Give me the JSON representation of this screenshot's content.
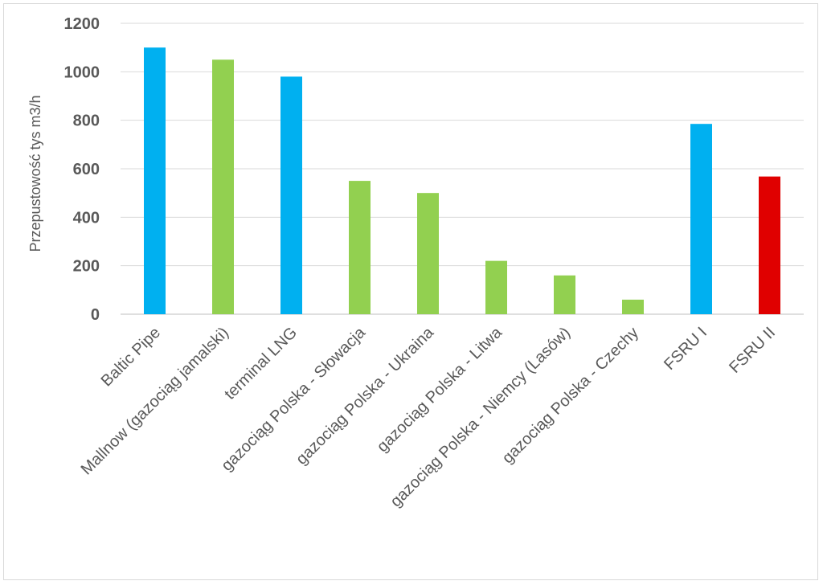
{
  "chart_data": {
    "type": "bar",
    "title": "",
    "xlabel": "",
    "ylabel": "Przepustowość tys m3/h",
    "ylim": [
      0,
      1200
    ],
    "yticks": [
      0,
      200,
      400,
      600,
      800,
      1000,
      1200
    ],
    "grid": true,
    "legend": "none",
    "categories": [
      "Baltic Pipe",
      "Mallnow (gazociąg jamalski)",
      "terminal LNG",
      "gazociąg Polska - Słowacja",
      "gazociąg Polska - Ukraina",
      "gazociąg Polska - Litwa",
      "gazociąg Polska - Niemcy (Lasów)",
      "gazociąg Polska - Czechy",
      "FSRU I",
      "FSRU II"
    ],
    "values": [
      1100,
      1050,
      980,
      550,
      500,
      220,
      160,
      60,
      785,
      568
    ],
    "colors": [
      "#00b0f0",
      "#92d050",
      "#00b0f0",
      "#92d050",
      "#92d050",
      "#92d050",
      "#92d050",
      "#92d050",
      "#00b0f0",
      "#e00000"
    ]
  }
}
